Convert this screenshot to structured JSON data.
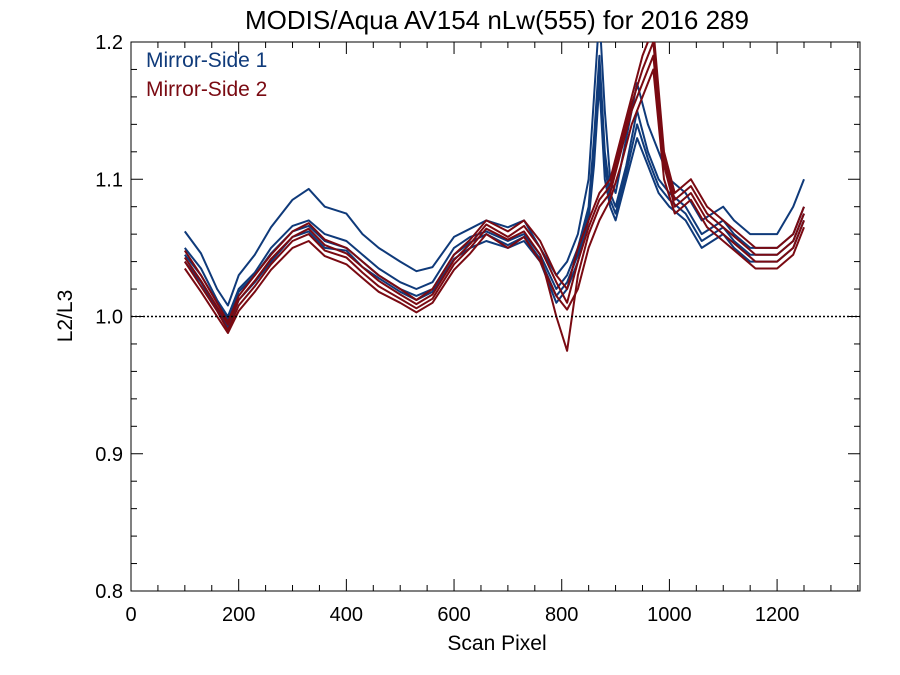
{
  "chart_data": {
    "type": "line",
    "title": "MODIS/Aqua AV154 nLw(555) for 2016 289",
    "xlabel": "Scan Pixel",
    "ylabel": "L2/L3",
    "xlim": [
      0,
      1354
    ],
    "ylim": [
      0.8,
      1.2
    ],
    "x_ticks": [
      "0",
      "200",
      "400",
      "600",
      "800",
      "1000",
      "1200"
    ],
    "y_ticks": [
      "0.8",
      "0.9",
      "1.0",
      "1.1",
      "1.2"
    ],
    "reference_line": 1.0,
    "grid": false,
    "legend_position": "top-left",
    "colors": {
      "mirror_side_1": "#0f3a7a",
      "mirror_side_2": "#7a0a12"
    },
    "series": [
      {
        "name": "Mirror-Side 1",
        "lines": [
          {
            "x": [
              100,
              130,
              160,
              180,
              200,
              230,
              260,
              300,
              330,
              360,
              400,
              430,
              460,
              500,
              530,
              560,
              600,
              630,
              660,
              700,
              730,
              760,
              790,
              810,
              830,
              850,
              860,
              870,
              880,
              890,
              900,
              920,
              940,
              960,
              980,
              1000,
              1030,
              1060,
              1100,
              1120,
              1150,
              1200,
              1230,
              1250
            ],
            "y": [
              1.062,
              1.046,
              1.02,
              1.008,
              1.03,
              1.045,
              1.065,
              1.085,
              1.093,
              1.08,
              1.075,
              1.06,
              1.05,
              1.04,
              1.033,
              1.036,
              1.058,
              1.064,
              1.07,
              1.065,
              1.07,
              1.05,
              1.03,
              1.04,
              1.06,
              1.1,
              1.16,
              1.22,
              1.15,
              1.1,
              1.09,
              1.13,
              1.17,
              1.14,
              1.12,
              1.1,
              1.09,
              1.07,
              1.08,
              1.07,
              1.06,
              1.06,
              1.08,
              1.1
            ]
          },
          {
            "x": [
              100,
              130,
              160,
              180,
              200,
              230,
              260,
              300,
              330,
              360,
              400,
              430,
              460,
              500,
              530,
              560,
              600,
              630,
              660,
              700,
              730,
              760,
              790,
              810,
              830,
              850,
              860,
              870,
              880,
              890,
              900,
              920,
              940,
              960,
              980,
              1000,
              1030,
              1060,
              1100,
              1120,
              1150,
              1200,
              1230,
              1250
            ],
            "y": [
              1.05,
              1.035,
              1.012,
              1.0,
              1.02,
              1.032,
              1.05,
              1.066,
              1.07,
              1.06,
              1.055,
              1.045,
              1.035,
              1.025,
              1.02,
              1.025,
              1.05,
              1.058,
              1.062,
              1.055,
              1.06,
              1.045,
              1.02,
              1.03,
              1.05,
              1.08,
              1.13,
              1.19,
              1.12,
              1.09,
              1.08,
              1.11,
              1.15,
              1.12,
              1.1,
              1.09,
              1.08,
              1.06,
              1.07,
              1.06,
              1.05,
              1.05,
              1.06,
              1.08
            ]
          },
          {
            "x": [
              100,
              130,
              160,
              180,
              200,
              230,
              260,
              300,
              330,
              360,
              400,
              430,
              460,
              500,
              530,
              560,
              600,
              630,
              660,
              700,
              730,
              760,
              790,
              810,
              830,
              850,
              860,
              870,
              880,
              890,
              900,
              920,
              940,
              960,
              980,
              1000,
              1030,
              1060,
              1100,
              1120,
              1150,
              1200,
              1230,
              1250
            ],
            "y": [
              1.04,
              1.025,
              1.005,
              0.992,
              1.012,
              1.025,
              1.04,
              1.058,
              1.062,
              1.05,
              1.048,
              1.036,
              1.028,
              1.018,
              1.012,
              1.018,
              1.042,
              1.05,
              1.055,
              1.05,
              1.055,
              1.04,
              1.01,
              1.02,
              1.04,
              1.07,
              1.11,
              1.17,
              1.1,
              1.08,
              1.07,
              1.1,
              1.13,
              1.11,
              1.09,
              1.08,
              1.07,
              1.05,
              1.06,
              1.05,
              1.04,
              1.04,
              1.05,
              1.07
            ]
          },
          {
            "x": [
              100,
              130,
              160,
              180,
              200,
              230,
              260,
              300,
              330,
              360,
              400,
              430,
              460,
              500,
              530,
              560,
              600,
              630,
              660,
              700,
              730,
              760,
              790,
              810,
              830,
              850,
              860,
              870,
              880,
              890,
              900,
              920,
              940,
              960,
              980,
              1000,
              1030,
              1060,
              1100,
              1120,
              1150,
              1200,
              1230,
              1250
            ],
            "y": [
              1.045,
              1.03,
              1.01,
              0.998,
              1.018,
              1.03,
              1.046,
              1.062,
              1.066,
              1.055,
              1.05,
              1.04,
              1.03,
              1.02,
              1.015,
              1.02,
              1.045,
              1.054,
              1.06,
              1.052,
              1.058,
              1.042,
              1.015,
              1.025,
              1.045,
              1.075,
              1.12,
              1.18,
              1.11,
              1.085,
              1.075,
              1.105,
              1.14,
              1.115,
              1.095,
              1.085,
              1.075,
              1.055,
              1.065,
              1.055,
              1.045,
              1.045,
              1.055,
              1.075
            ]
          }
        ]
      },
      {
        "name": "Mirror-Side 2",
        "lines": [
          {
            "x": [
              100,
              130,
              160,
              180,
              200,
              230,
              260,
              300,
              330,
              360,
              400,
              430,
              460,
              500,
              530,
              560,
              600,
              630,
              660,
              700,
              730,
              760,
              790,
              810,
              830,
              850,
              870,
              890,
              910,
              930,
              950,
              970,
              990,
              1010,
              1040,
              1070,
              1100,
              1130,
              1160,
              1200,
              1230,
              1250
            ],
            "y": [
              1.048,
              1.03,
              1.01,
              0.996,
              1.015,
              1.03,
              1.045,
              1.062,
              1.068,
              1.056,
              1.05,
              1.04,
              1.03,
              1.02,
              1.012,
              1.02,
              1.045,
              1.056,
              1.07,
              1.062,
              1.07,
              1.055,
              1.03,
              1.02,
              1.05,
              1.07,
              1.09,
              1.1,
              1.13,
              1.16,
              1.19,
              1.21,
              1.12,
              1.09,
              1.1,
              1.08,
              1.07,
              1.06,
              1.05,
              1.05,
              1.06,
              1.08
            ]
          },
          {
            "x": [
              100,
              130,
              160,
              180,
              200,
              230,
              260,
              300,
              330,
              360,
              400,
              430,
              460,
              500,
              530,
              560,
              600,
              630,
              660,
              700,
              730,
              760,
              790,
              810,
              830,
              850,
              870,
              890,
              910,
              930,
              950,
              970,
              990,
              1010,
              1040,
              1070,
              1100,
              1130,
              1160,
              1200,
              1230,
              1250
            ],
            "y": [
              1.04,
              1.022,
              1.004,
              0.99,
              1.008,
              1.022,
              1.038,
              1.055,
              1.06,
              1.048,
              1.043,
              1.032,
              1.022,
              1.013,
              1.006,
              1.013,
              1.038,
              1.05,
              1.064,
              1.056,
              1.062,
              1.045,
              1.0,
              0.975,
              1.03,
              1.06,
              1.08,
              1.09,
              1.12,
              1.15,
              1.17,
              1.19,
              1.11,
              1.08,
              1.09,
              1.07,
              1.06,
              1.05,
              1.04,
              1.04,
              1.05,
              1.07
            ]
          },
          {
            "x": [
              100,
              130,
              160,
              180,
              200,
              230,
              260,
              300,
              330,
              360,
              400,
              430,
              460,
              500,
              530,
              560,
              600,
              630,
              660,
              700,
              730,
              760,
              790,
              810,
              830,
              850,
              870,
              890,
              910,
              930,
              950,
              970,
              990,
              1010,
              1040,
              1070,
              1100,
              1130,
              1160,
              1200,
              1230,
              1250
            ],
            "y": [
              1.035,
              1.018,
              1.0,
              0.988,
              1.004,
              1.018,
              1.034,
              1.05,
              1.055,
              1.044,
              1.038,
              1.028,
              1.018,
              1.01,
              1.003,
              1.01,
              1.034,
              1.046,
              1.06,
              1.05,
              1.058,
              1.04,
              1.015,
              1.005,
              1.02,
              1.05,
              1.07,
              1.085,
              1.11,
              1.14,
              1.16,
              1.18,
              1.1,
              1.075,
              1.085,
              1.065,
              1.055,
              1.045,
              1.035,
              1.035,
              1.045,
              1.065
            ]
          },
          {
            "x": [
              100,
              130,
              160,
              180,
              200,
              230,
              260,
              300,
              330,
              360,
              400,
              430,
              460,
              500,
              530,
              560,
              600,
              630,
              660,
              700,
              730,
              760,
              790,
              810,
              830,
              850,
              870,
              890,
              910,
              930,
              950,
              970,
              990,
              1010,
              1040,
              1070,
              1100,
              1130,
              1160,
              1200,
              1230,
              1250
            ],
            "y": [
              1.043,
              1.026,
              1.007,
              0.994,
              1.012,
              1.026,
              1.042,
              1.058,
              1.064,
              1.052,
              1.046,
              1.036,
              1.026,
              1.016,
              1.009,
              1.016,
              1.041,
              1.053,
              1.067,
              1.058,
              1.066,
              1.05,
              1.025,
              1.01,
              1.04,
              1.065,
              1.085,
              1.095,
              1.125,
              1.155,
              1.18,
              1.2,
              1.115,
              1.085,
              1.095,
              1.075,
              1.065,
              1.055,
              1.045,
              1.045,
              1.055,
              1.075
            ]
          }
        ]
      }
    ]
  }
}
